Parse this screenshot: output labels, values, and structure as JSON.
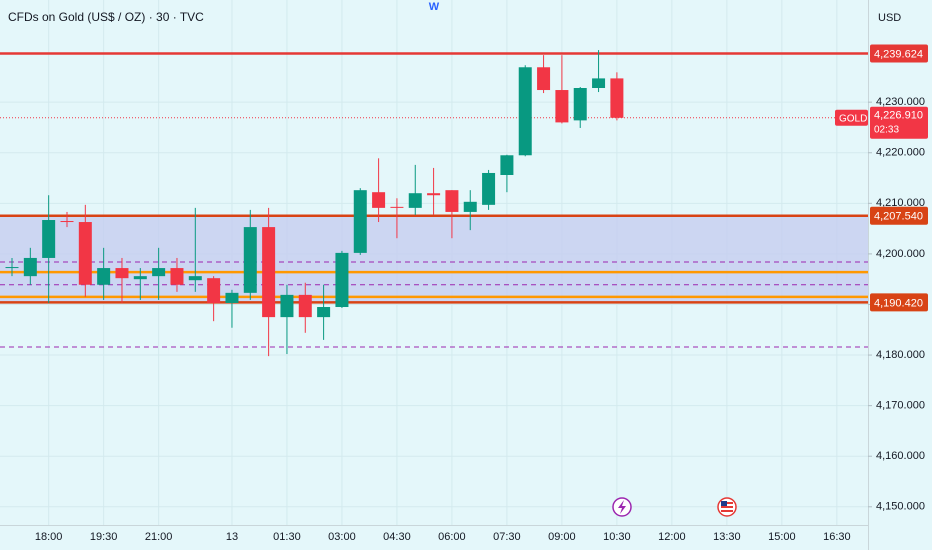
{
  "chart_data": {
    "type": "candlestick",
    "title": "CFDs on Gold (US$ / OZ) · 30 · TVC",
    "marker": "W",
    "currency": "USD",
    "categories": [
      null,
      null,
      "18:00",
      null,
      null,
      "19:30",
      null,
      null,
      "21:00",
      null,
      null,
      null,
      "13",
      null,
      null,
      "01:30",
      null,
      null,
      "03:00",
      null,
      null,
      "04:30",
      null,
      null,
      "06:00",
      null,
      null,
      "07:30",
      null,
      null,
      "09:00",
      null,
      null,
      "10:30",
      null,
      null,
      "12:00",
      null,
      null,
      "13:30",
      null,
      null,
      "15:00",
      null,
      null,
      "16:30",
      null,
      null
    ],
    "open": [
      4197.2,
      4195.6,
      4199.2,
      4206.5,
      4206.3,
      4193.9,
      4197.2,
      4195.0,
      4195.6,
      4197.2,
      4194.8,
      4195.2,
      4190.3,
      4192.3,
      4205.3,
      4187.5,
      4191.9,
      4187.5,
      4189.5,
      4200.2,
      4212.2,
      4209.3,
      4209.1,
      4212.0,
      4212.6,
      4208.3,
      4209.7,
      4215.6,
      4219.5,
      4236.9,
      4232.4,
      4226.4,
      4232.8,
      4234.7,
      null,
      null,
      null,
      null,
      null,
      null,
      null,
      null,
      null,
      null,
      null,
      null,
      null,
      null
    ],
    "high": [
      4199.2,
      4201.2,
      4211.6,
      4208.3,
      4209.7,
      4201.2,
      4199.2,
      4197.2,
      4201.2,
      4199.2,
      4209.1,
      4195.6,
      4192.9,
      4208.7,
      4209.1,
      4193.9,
      4194.3,
      4193.9,
      4200.6,
      4213.0,
      4218.9,
      4211.0,
      4217.6,
      4217.0,
      4212.6,
      4212.6,
      4216.6,
      4219.6,
      4237.3,
      4239.3,
      4239.3,
      4233.0,
      4240.3,
      4235.9,
      null,
      null,
      null,
      null,
      null,
      null,
      null,
      null,
      null,
      null,
      null,
      null,
      null,
      null
    ],
    "low": [
      4195.6,
      4193.9,
      4190.3,
      4205.3,
      4191.5,
      4190.9,
      4190.3,
      4190.9,
      4190.9,
      4192.5,
      4192.5,
      4186.7,
      4185.4,
      4190.9,
      4179.8,
      4180.2,
      4184.4,
      4183.0,
      4189.3,
      4199.8,
      4206.3,
      4203.1,
      4207.7,
      4207.7,
      4203.1,
      4204.7,
      4208.7,
      4212.2,
      4219.3,
      4231.8,
      4225.8,
      4224.9,
      4232.0,
      4226.4,
      null,
      null,
      null,
      null,
      null,
      null,
      null,
      null,
      null,
      null,
      null,
      null,
      null,
      null
    ],
    "close": [
      4197.4,
      4199.2,
      4206.7,
      4206.3,
      4193.9,
      4197.2,
      4195.2,
      4195.6,
      4197.2,
      4193.9,
      4195.6,
      4190.3,
      4192.3,
      4205.3,
      4187.5,
      4191.9,
      4187.5,
      4189.5,
      4200.2,
      4212.6,
      4209.1,
      4209.1,
      4212.0,
      4211.6,
      4208.3,
      4210.3,
      4216.0,
      4219.5,
      4236.9,
      4232.4,
      4226.0,
      4232.8,
      4234.7,
      4226.91,
      null,
      null,
      null,
      null,
      null,
      null,
      null,
      null,
      null,
      null,
      null,
      null,
      null,
      null
    ],
    "up_color": "#089981",
    "down_color": "#f23645",
    "ylim": [
      4146.4,
      4250.2
    ],
    "yticks": [
      {
        "value": 4150,
        "label": "4,150.000"
      },
      {
        "value": 4160,
        "label": "4,160.000"
      },
      {
        "value": 4170,
        "label": "4,170.000"
      },
      {
        "value": 4180,
        "label": "4,180.000"
      },
      {
        "value": 4190,
        "label": "4,190.000"
      },
      {
        "value": 4200,
        "label": "4,200.000"
      },
      {
        "value": 4210,
        "label": "4,210.000"
      },
      {
        "value": 4220,
        "label": "4,220.000"
      },
      {
        "value": 4230,
        "label": "4,230.000"
      }
    ],
    "grid": true,
    "shaded_zone": {
      "from": 4190.42,
      "to": 4207.54,
      "color": "#c5cdf0"
    },
    "levels": [
      {
        "value": 4239.624,
        "label": "4,239.624",
        "color": "#e53935",
        "style": "solid"
      },
      {
        "value": 4207.54,
        "label": "4,207.540",
        "color": "#d84315",
        "style": "solid"
      },
      {
        "value": 4190.42,
        "label": "4,190.420",
        "color": "#d84315",
        "style": "solid"
      },
      {
        "value": 4196.4,
        "color": "#ff9800",
        "style": "solid"
      },
      {
        "value": 4191.5,
        "color": "#ff9800",
        "style": "solid"
      },
      {
        "value": 4198.4,
        "color": "#9c27b0",
        "style": "dashed"
      },
      {
        "value": 4193.9,
        "color": "#9c27b0",
        "style": "dashed"
      },
      {
        "value": 4181.6,
        "color": "#9c27b0",
        "style": "dashed"
      }
    ],
    "last_price": {
      "name": "GOLD",
      "value": 4226.91,
      "label": "4,226.910",
      "countdown": "02:33",
      "color": "#f23645"
    }
  }
}
